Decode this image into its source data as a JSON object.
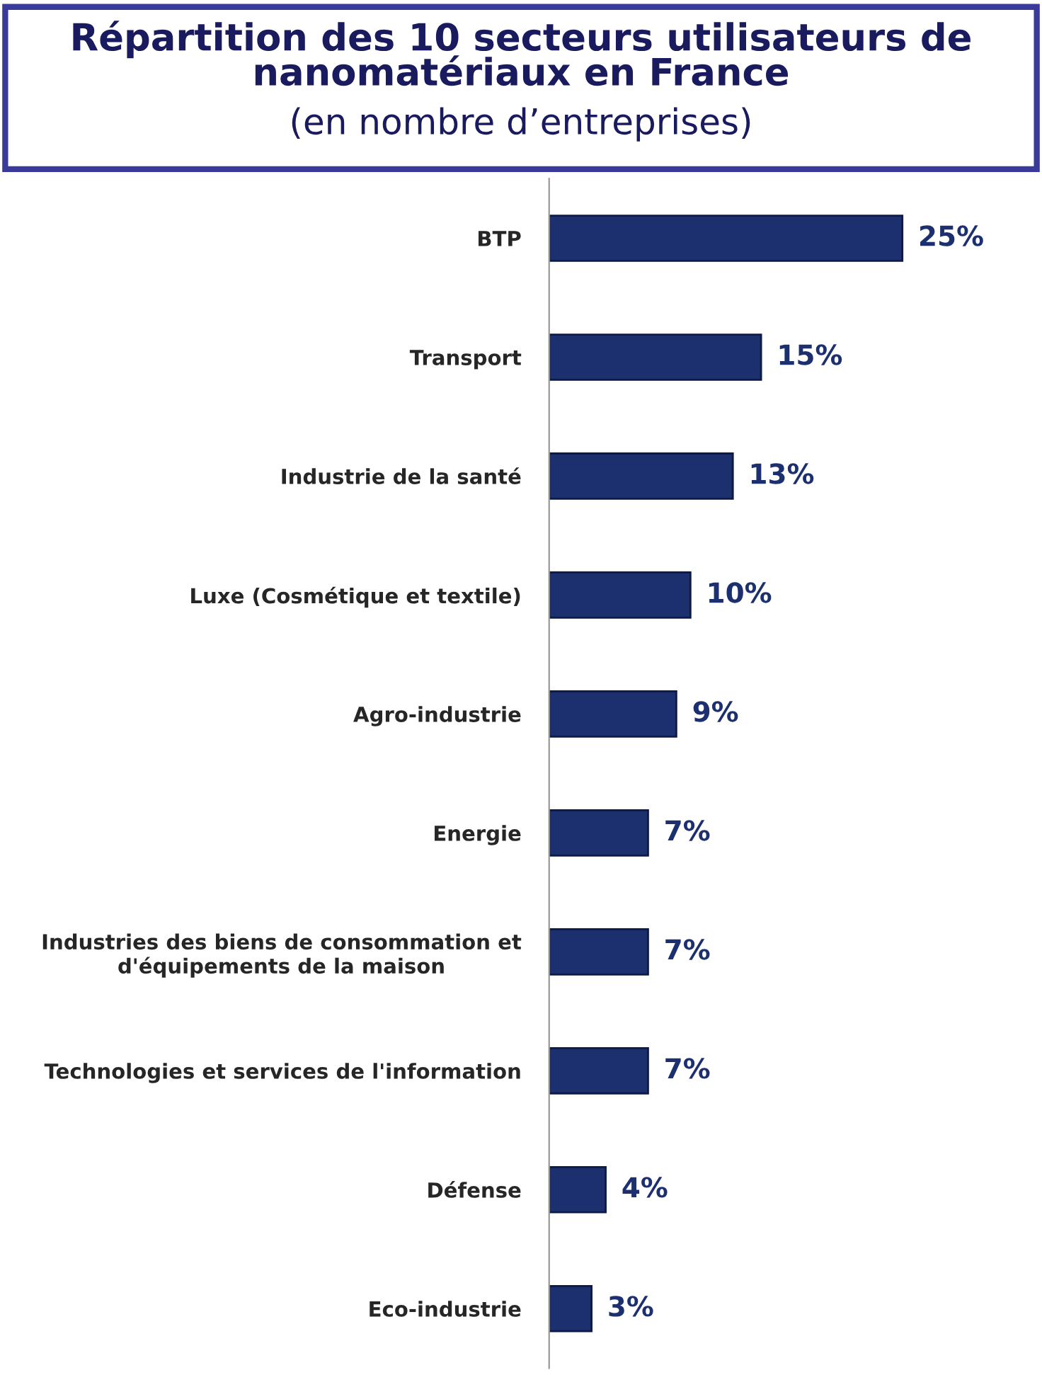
{
  "chart_data": {
    "type": "bar",
    "orientation": "horizontal",
    "title": "Répartition des 10 secteurs utilisateurs de\nnanomatériaux en France",
    "subtitle": "(en nombre d’entreprises)",
    "categories": [
      "BTP",
      "Transport",
      "Industrie de la santé",
      "Luxe (Cosmétique et textile)",
      "Agro-industrie",
      "Energie",
      "Industries des biens de consommation et\nd'équipements de la maison",
      "Technologies et services de l'information",
      "Défense",
      "Eco-industrie"
    ],
    "values": [
      25,
      15,
      13,
      10,
      9,
      7,
      7,
      7,
      4,
      3
    ],
    "value_labels": [
      "25%",
      "15%",
      "13%",
      "10%",
      "9%",
      "7%",
      "7%",
      "7%",
      "4%",
      "3%"
    ],
    "color": "#1c2f6e",
    "tick_labels": "y",
    "grid": false,
    "legend": false
  }
}
